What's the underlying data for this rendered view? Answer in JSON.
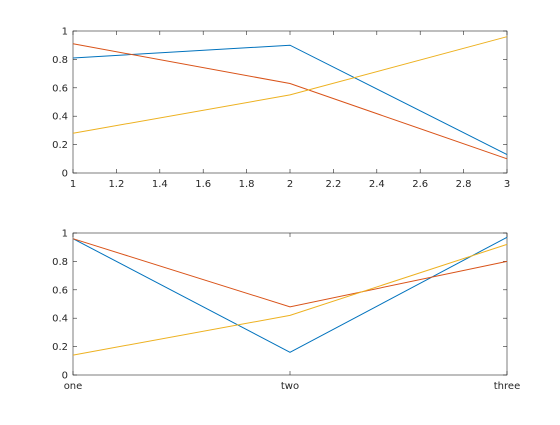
{
  "chart_data": [
    {
      "type": "line",
      "x": [
        1,
        2,
        3
      ],
      "xlim": [
        1,
        3
      ],
      "ylim": [
        0,
        1
      ],
      "xticks": [
        "1",
        "1.2",
        "1.4",
        "1.6",
        "1.8",
        "2",
        "2.2",
        "2.4",
        "2.6",
        "2.8",
        "3"
      ],
      "yticks": [
        "0",
        "0.2",
        "0.4",
        "0.6",
        "0.8",
        "1"
      ],
      "grid": false,
      "series": [
        {
          "color": "#0072BD",
          "values": [
            0.81,
            0.9,
            0.13
          ]
        },
        {
          "color": "#D95319",
          "values": [
            0.91,
            0.63,
            0.1
          ]
        },
        {
          "color": "#EDB120",
          "values": [
            0.28,
            0.55,
            0.96
          ]
        }
      ]
    },
    {
      "type": "line",
      "categories": [
        "one",
        "two",
        "three"
      ],
      "ylim": [
        0,
        1
      ],
      "yticks": [
        "0",
        "0.2",
        "0.4",
        "0.6",
        "0.8",
        "1"
      ],
      "grid": false,
      "series": [
        {
          "color": "#0072BD",
          "values": [
            0.96,
            0.16,
            0.97
          ]
        },
        {
          "color": "#D95319",
          "values": [
            0.96,
            0.48,
            0.8
          ]
        },
        {
          "color": "#EDB120",
          "values": [
            0.14,
            0.42,
            0.92
          ]
        }
      ]
    }
  ]
}
